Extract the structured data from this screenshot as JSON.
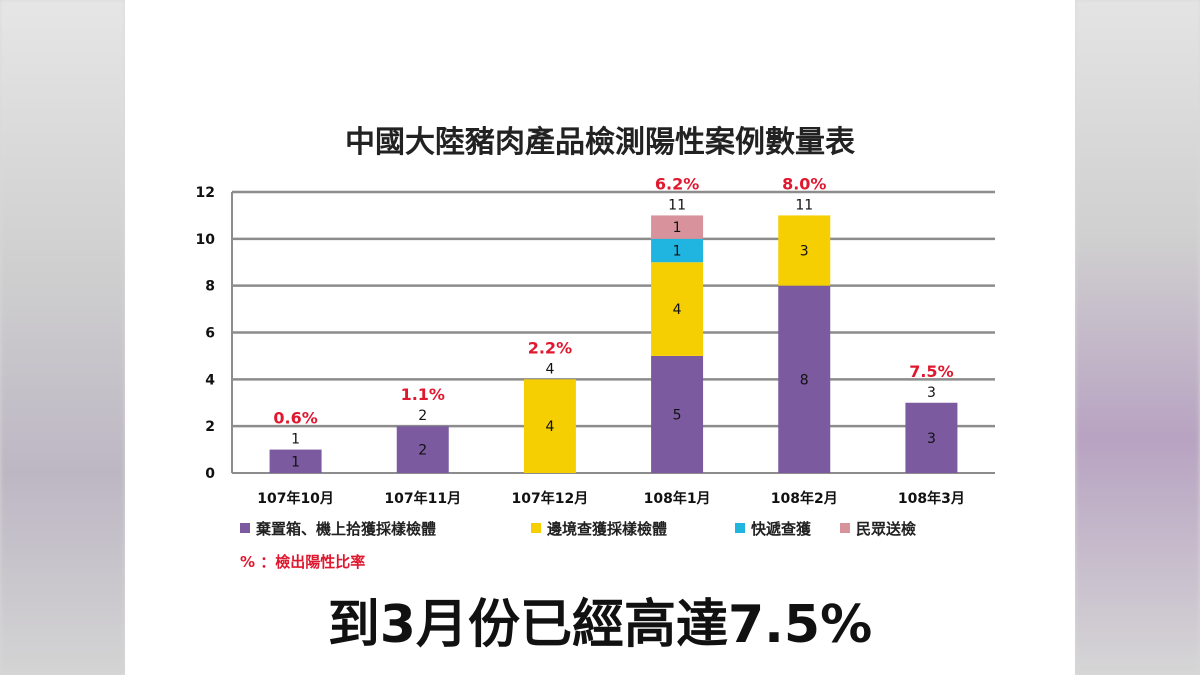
{
  "caption": "到3月份已經高達7.5%",
  "note": "% ：檢出陽性比率",
  "colors": {
    "series": [
      "#7b5aa0",
      "#f5cf02",
      "#20b4e0",
      "#d8929c"
    ],
    "pct": "#e0182f",
    "grid": "#8c8c8c"
  },
  "chart_data": {
    "type": "bar",
    "stacked": true,
    "title": "中國大陸豬肉產品檢測陽性案例數量表",
    "categories": [
      "107年10月",
      "107年11月",
      "107年12月",
      "108年1月",
      "108年2月",
      "108年3月"
    ],
    "series": [
      {
        "name": "棄置箱、機上拾獲採樣檢體",
        "values": [
          1,
          2,
          0,
          5,
          8,
          3
        ]
      },
      {
        "name": "邊境查獲採樣檢體",
        "values": [
          0,
          0,
          4,
          4,
          3,
          0
        ]
      },
      {
        "name": "快遞查獲",
        "values": [
          0,
          0,
          0,
          1,
          0,
          0
        ]
      },
      {
        "name": "民眾送檢",
        "values": [
          0,
          0,
          0,
          1,
          0,
          0
        ]
      }
    ],
    "totals": [
      1,
      2,
      4,
      11,
      11,
      3
    ],
    "positive_rates": [
      "0.6%",
      "1.1%",
      "2.2%",
      "6.2%",
      "8.0%",
      "7.5%"
    ],
    "ylim": [
      0,
      12
    ],
    "yticks": [
      0,
      2,
      4,
      6,
      8,
      10,
      12
    ],
    "grid": true,
    "legend_position": "bottom"
  }
}
